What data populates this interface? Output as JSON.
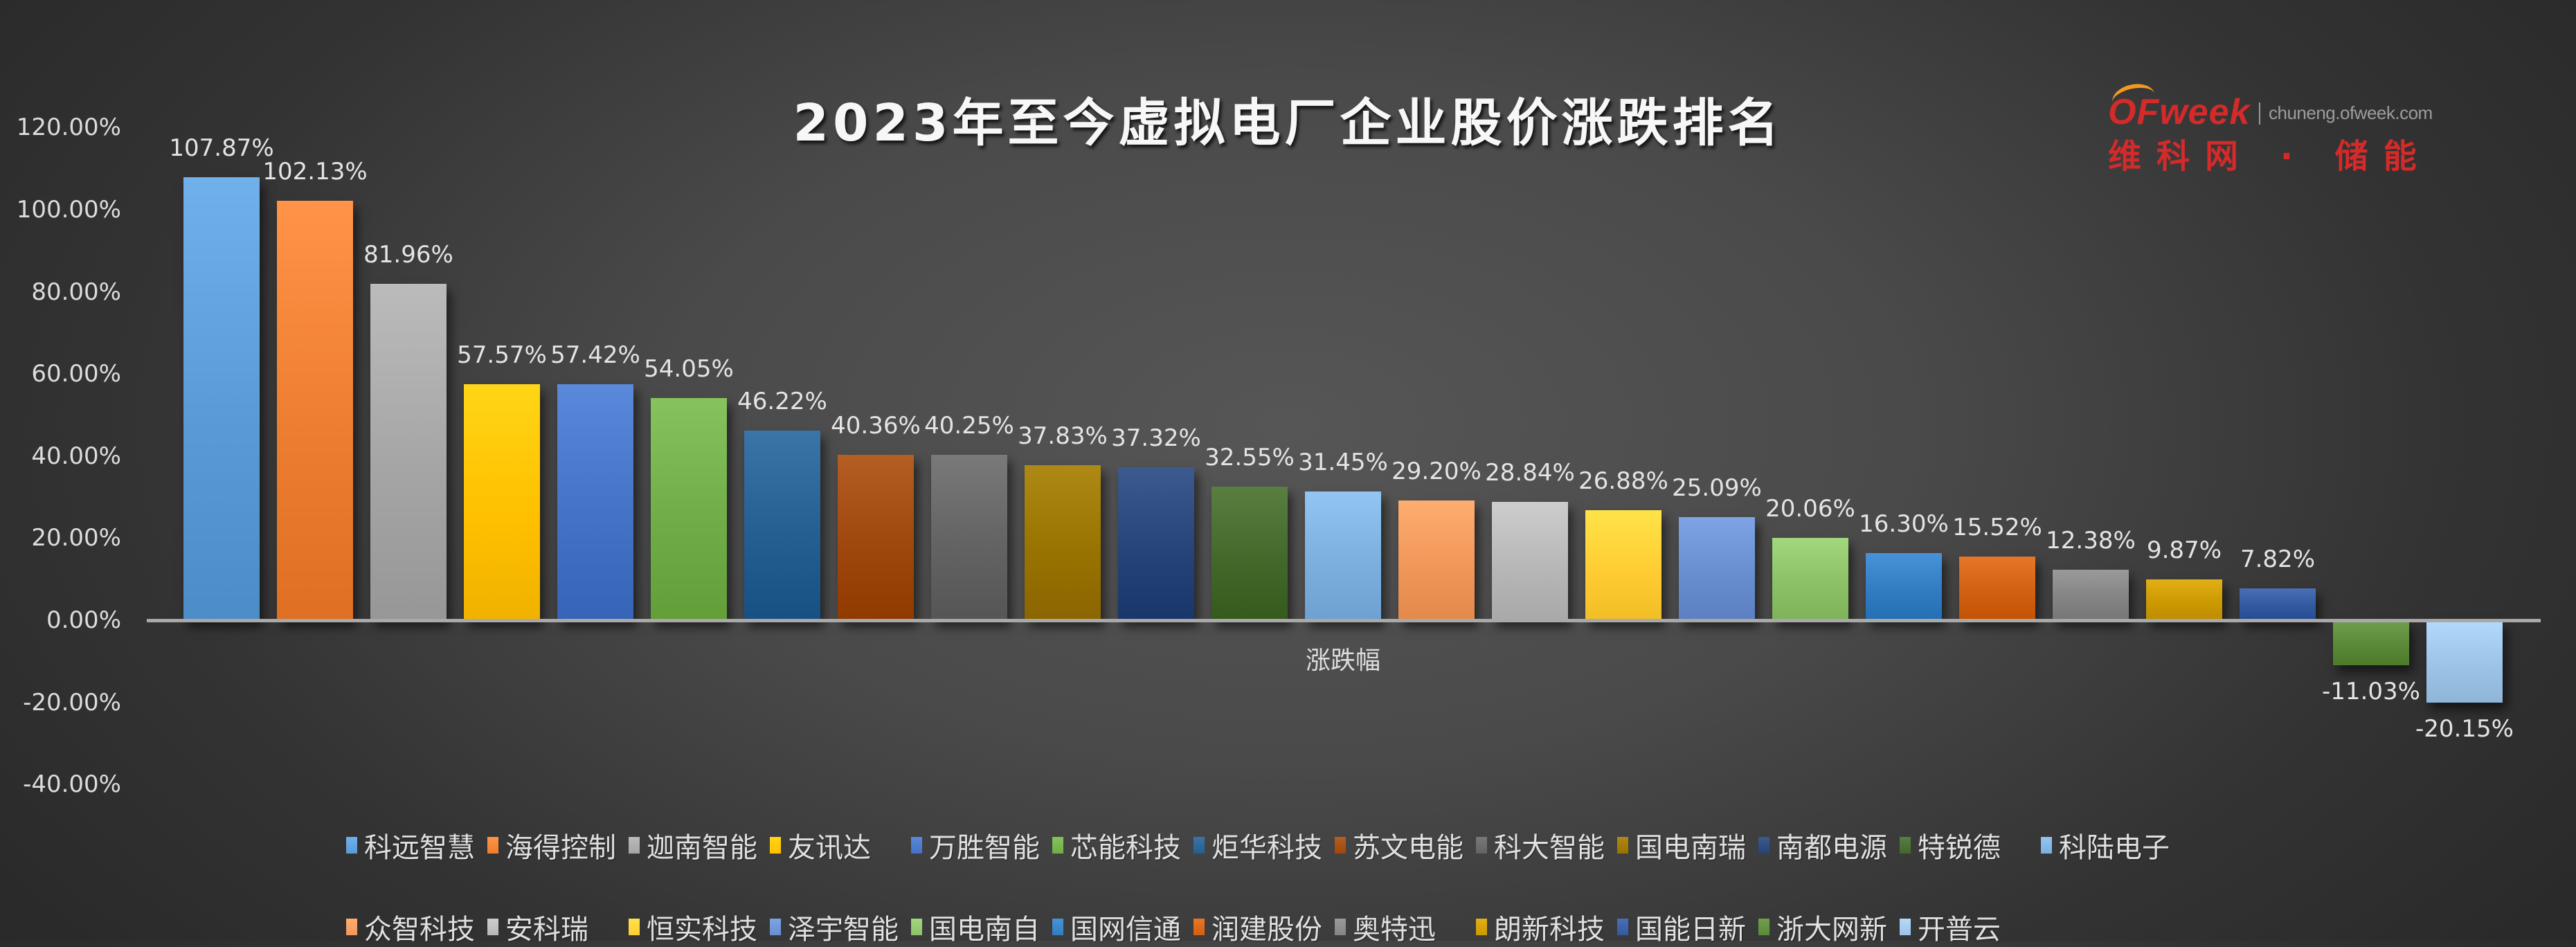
{
  "header": {
    "title": "2023年至今虚拟电厂企业股价涨跌排名"
  },
  "logo": {
    "brand": "OFweek",
    "url": "chuneng.ofweek.com",
    "cn": "维科网 · 储能",
    "brand_color": "#d42a2a",
    "arc_color": "#f39a1e"
  },
  "chart_data": {
    "type": "bar",
    "title": "2023年至今虚拟电厂企业股价涨跌排名",
    "xlabel": "涨跌幅",
    "ylabel": "",
    "ylim": [
      -0.4,
      1.2
    ],
    "yticks": [
      "120.00%",
      "100.00%",
      "80.00%",
      "60.00%",
      "40.00%",
      "20.00%",
      "0.00%",
      "-20.00%",
      "-40.00%"
    ],
    "ytick_values": [
      120,
      100,
      80,
      60,
      40,
      20,
      0,
      -20,
      -40
    ],
    "grid": false,
    "legend_position": "bottom",
    "categories": [
      "涨跌幅"
    ],
    "series": [
      {
        "name": "科远智慧",
        "values": [
          107.87
        ],
        "label": "107.87%",
        "color": "#5b9bd5"
      },
      {
        "name": "海得控制",
        "values": [
          102.13
        ],
        "label": "102.13%",
        "color": "#ed7d31"
      },
      {
        "name": "迦南智能",
        "values": [
          81.96
        ],
        "label": "81.96%",
        "color": "#a5a5a5"
      },
      {
        "name": "友讯达",
        "values": [
          57.57
        ],
        "label": "57.57%",
        "color": "#ffc000"
      },
      {
        "name": "万胜智能",
        "values": [
          57.42
        ],
        "label": "57.42%",
        "color": "#4472c4"
      },
      {
        "name": "芯能科技",
        "values": [
          54.05
        ],
        "label": "54.05%",
        "color": "#70ad47"
      },
      {
        "name": "炬华科技",
        "values": [
          46.22
        ],
        "label": "46.22%",
        "color": "#255e91"
      },
      {
        "name": "苏文电能",
        "values": [
          40.36
        ],
        "label": "40.36%",
        "color": "#9e480e"
      },
      {
        "name": "科大智能",
        "values": [
          40.25
        ],
        "label": "40.25%",
        "color": "#636363"
      },
      {
        "name": "国电南瑞",
        "values": [
          37.83
        ],
        "label": "37.83%",
        "color": "#997300"
      },
      {
        "name": "南都电源",
        "values": [
          37.32
        ],
        "label": "37.32%",
        "color": "#264478"
      },
      {
        "name": "特锐德",
        "values": [
          32.55
        ],
        "label": "32.55%",
        "color": "#43682b"
      },
      {
        "name": "科陆电子",
        "values": [
          31.45
        ],
        "label": "31.45%",
        "color": "#7cafdd"
      },
      {
        "name": "众智科技",
        "values": [
          29.2
        ],
        "label": "29.20%",
        "color": "#f1975a"
      },
      {
        "name": "安科瑞",
        "values": [
          28.84
        ],
        "label": "28.84%",
        "color": "#b7b7b7"
      },
      {
        "name": "恒实科技",
        "values": [
          26.88
        ],
        "label": "26.88%",
        "color": "#ffcd33"
      },
      {
        "name": "泽宇智能",
        "values": [
          25.09
        ],
        "label": "25.09%",
        "color": "#698ed0"
      },
      {
        "name": "国电南自",
        "values": [
          20.06
        ],
        "label": "20.06%",
        "color": "#8cc168"
      },
      {
        "name": "国网信通",
        "values": [
          16.3
        ],
        "label": "16.30%",
        "color": "#327dc2"
      },
      {
        "name": "润建股份",
        "values": [
          15.52
        ],
        "label": "15.52%",
        "color": "#d26012"
      },
      {
        "name": "奥特迅",
        "values": [
          12.38
        ],
        "label": "12.38%",
        "color": "#848484"
      },
      {
        "name": "朗新科技",
        "values": [
          9.87
        ],
        "label": "9.87%",
        "color": "#cc9a00"
      },
      {
        "name": "国能日新",
        "values": [
          7.82
        ],
        "label": "7.82%",
        "color": "#335aa1"
      },
      {
        "name": "浙大网新",
        "values": [
          -11.03
        ],
        "label": "-11.03%",
        "color": "#5a8a38"
      },
      {
        "name": "开普云",
        "values": [
          -20.15
        ],
        "label": "-20.15%",
        "color": "#9dc3e6"
      }
    ]
  }
}
